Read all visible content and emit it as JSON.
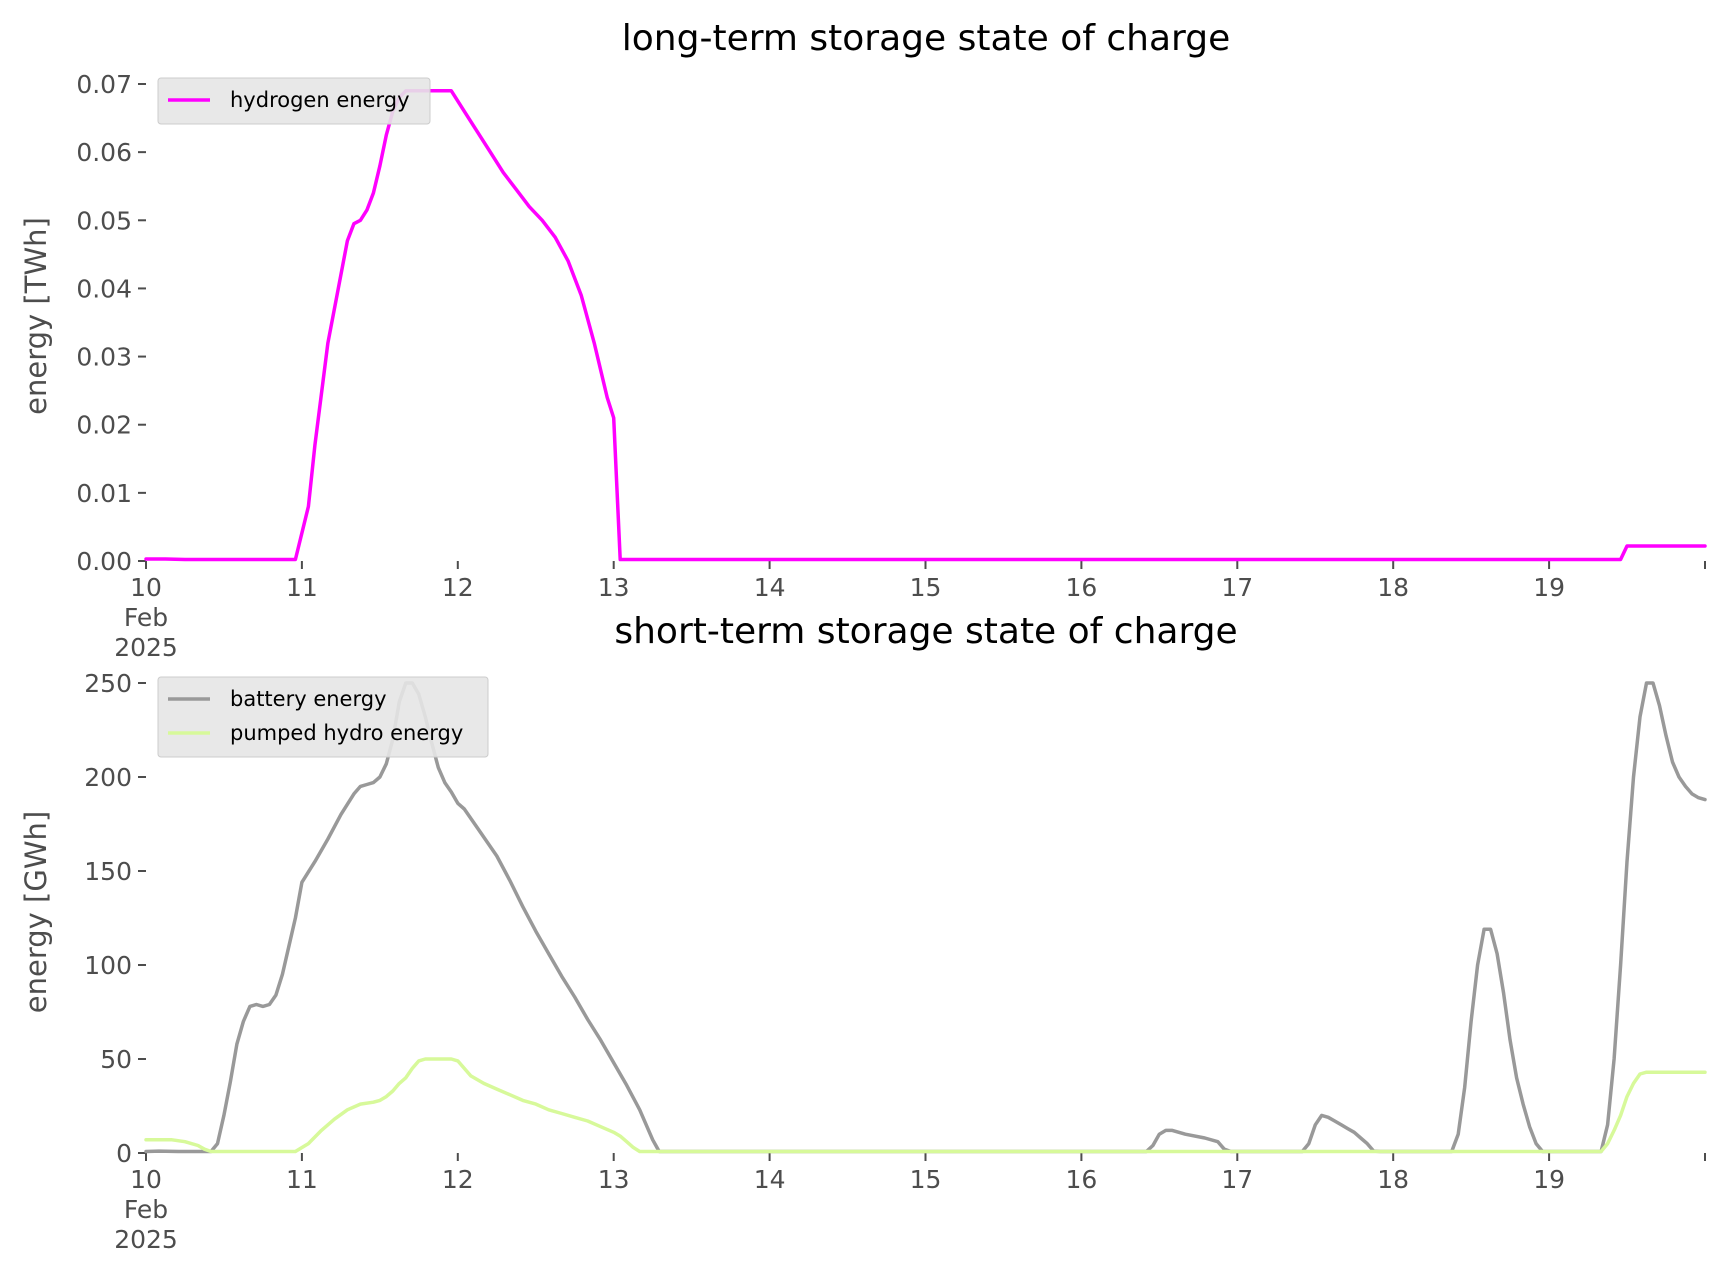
{
  "chart_data": [
    {
      "type": "line",
      "title": "long-term storage state of charge",
      "ylabel": "energy [TWh]",
      "xlabel": "",
      "xlim": [
        "2025-02-10 00:00",
        "2025-02-20 00:00"
      ],
      "ylim": [
        0,
        0.07
      ],
      "x_ticks": [
        "10",
        "11",
        "12",
        "13",
        "14",
        "15",
        "16",
        "17",
        "18",
        "19"
      ],
      "x_tick_sub": [
        "Feb",
        "2025"
      ],
      "y_ticks": [
        "0.00",
        "0.01",
        "0.02",
        "0.03",
        "0.04",
        "0.05",
        "0.06",
        "0.07"
      ],
      "grid": false,
      "legend": "top-left",
      "series": [
        {
          "name": "hydrogen energy",
          "color": "#ff00ff",
          "points": [
            [
              "2025-02-10 00:00",
              0.0003
            ],
            [
              "2025-02-10 03:00",
              0.0003
            ],
            [
              "2025-02-10 06:00",
              0.0002
            ],
            [
              "2025-02-10 09:00",
              0.0001
            ],
            [
              "2025-02-10 12:00",
              0.0001
            ],
            [
              "2025-02-10 23:00",
              0.0001
            ],
            [
              "2025-02-11 01:00",
              0.008
            ],
            [
              "2025-02-11 02:00",
              0.017
            ],
            [
              "2025-02-11 04:00",
              0.032
            ],
            [
              "2025-02-11 06:00",
              0.042
            ],
            [
              "2025-02-11 07:00",
              0.047
            ],
            [
              "2025-02-11 08:00",
              0.0495
            ],
            [
              "2025-02-11 09:00",
              0.05
            ],
            [
              "2025-02-11 10:00",
              0.0515
            ],
            [
              "2025-02-11 11:00",
              0.054
            ],
            [
              "2025-02-11 12:00",
              0.058
            ],
            [
              "2025-02-11 13:00",
              0.0625
            ],
            [
              "2025-02-11 14:00",
              0.066
            ],
            [
              "2025-02-11 15:00",
              0.068
            ],
            [
              "2025-02-11 16:00",
              0.069
            ],
            [
              "2025-02-11 23:00",
              0.069
            ],
            [
              "2025-02-12 01:00",
              0.066
            ],
            [
              "2025-02-12 03:00",
              0.063
            ],
            [
              "2025-02-12 05:00",
              0.06
            ],
            [
              "2025-02-12 07:00",
              0.057
            ],
            [
              "2025-02-12 09:00",
              0.0545
            ],
            [
              "2025-02-12 11:00",
              0.052
            ],
            [
              "2025-02-12 13:00",
              0.05
            ],
            [
              "2025-02-12 15:00",
              0.0475
            ],
            [
              "2025-02-12 17:00",
              0.044
            ],
            [
              "2025-02-12 19:00",
              0.039
            ],
            [
              "2025-02-12 21:00",
              0.032
            ],
            [
              "2025-02-12 23:00",
              0.024
            ],
            [
              "2025-02-13 00:00",
              0.021
            ],
            [
              "2025-02-13 01:00",
              0.0
            ],
            [
              "2025-02-19 11:00",
              0.0
            ],
            [
              "2025-02-19 12:00",
              0.0022
            ],
            [
              "2025-02-20 00:00",
              0.0022
            ]
          ]
        }
      ]
    },
    {
      "type": "line",
      "title": "short-term storage state of charge",
      "ylabel": "energy [GWh]",
      "xlabel": "",
      "xlim": [
        "2025-02-10 00:00",
        "2025-02-20 00:00"
      ],
      "ylim": [
        0,
        250
      ],
      "x_ticks": [
        "10",
        "11",
        "12",
        "13",
        "14",
        "15",
        "16",
        "17",
        "18",
        "19"
      ],
      "x_tick_sub": [
        "Feb",
        "2025"
      ],
      "y_ticks": [
        "0",
        "50",
        "100",
        "150",
        "200",
        "250"
      ],
      "grid": false,
      "legend": "top-left",
      "series": [
        {
          "name": "battery energy",
          "color": "#999999",
          "points": [
            [
              "2025-02-10 00:00",
              0
            ],
            [
              "2025-02-10 02:00",
              1
            ],
            [
              "2025-02-10 05:00",
              0.5
            ],
            [
              "2025-02-10 07:00",
              0
            ],
            [
              "2025-02-10 10:00",
              0
            ],
            [
              "2025-02-10 11:00",
              5
            ],
            [
              "2025-02-10 12:00",
              20
            ],
            [
              "2025-02-10 13:00",
              38
            ],
            [
              "2025-02-10 14:00",
              58
            ],
            [
              "2025-02-10 15:00",
              70
            ],
            [
              "2025-02-10 16:00",
              78
            ],
            [
              "2025-02-10 17:00",
              79
            ],
            [
              "2025-02-10 18:00",
              78
            ],
            [
              "2025-02-10 19:00",
              79
            ],
            [
              "2025-02-10 20:00",
              84
            ],
            [
              "2025-02-10 21:00",
              95
            ],
            [
              "2025-02-10 22:00",
              110
            ],
            [
              "2025-02-10 23:00",
              125
            ],
            [
              "2025-02-11 00:00",
              144
            ],
            [
              "2025-02-11 02:00",
              155
            ],
            [
              "2025-02-11 04:00",
              167
            ],
            [
              "2025-02-11 06:00",
              180
            ],
            [
              "2025-02-11 08:00",
              191
            ],
            [
              "2025-02-11 09:00",
              195
            ],
            [
              "2025-02-11 10:00",
              196
            ],
            [
              "2025-02-11 11:00",
              197
            ],
            [
              "2025-02-11 12:00",
              200
            ],
            [
              "2025-02-11 13:00",
              207
            ],
            [
              "2025-02-11 14:00",
              220
            ],
            [
              "2025-02-11 15:00",
              240
            ],
            [
              "2025-02-11 16:00",
              250
            ],
            [
              "2025-02-11 17:00",
              250
            ],
            [
              "2025-02-11 18:00",
              244
            ],
            [
              "2025-02-11 19:00",
              232
            ],
            [
              "2025-02-11 20:00",
              218
            ],
            [
              "2025-02-11 21:00",
              205
            ],
            [
              "2025-02-11 22:00",
              197
            ],
            [
              "2025-02-11 23:00",
              192
            ],
            [
              "2025-02-12 00:00",
              186
            ],
            [
              "2025-02-12 01:00",
              183
            ],
            [
              "2025-02-12 03:00",
              173
            ],
            [
              "2025-02-12 06:00",
              158
            ],
            [
              "2025-02-12 08:00",
              145
            ],
            [
              "2025-02-12 10:00",
              131
            ],
            [
              "2025-02-12 12:00",
              118
            ],
            [
              "2025-02-12 14:00",
              106
            ],
            [
              "2025-02-12 16:00",
              94
            ],
            [
              "2025-02-12 18:00",
              83
            ],
            [
              "2025-02-12 20:00",
              71
            ],
            [
              "2025-02-12 22:00",
              60
            ],
            [
              "2025-02-13 00:00",
              48
            ],
            [
              "2025-02-13 02:00",
              36
            ],
            [
              "2025-02-13 04:00",
              23
            ],
            [
              "2025-02-13 05:00",
              15
            ],
            [
              "2025-02-13 06:00",
              7
            ],
            [
              "2025-02-13 07:00",
              0
            ],
            [
              "2025-02-16 10:00",
              0
            ],
            [
              "2025-02-16 11:00",
              4
            ],
            [
              "2025-02-16 12:00",
              10
            ],
            [
              "2025-02-16 13:00",
              12
            ],
            [
              "2025-02-16 14:00",
              12
            ],
            [
              "2025-02-16 16:00",
              10
            ],
            [
              "2025-02-16 19:00",
              8
            ],
            [
              "2025-02-16 21:00",
              6
            ],
            [
              "2025-02-16 22:00",
              2
            ],
            [
              "2025-02-16 23:00",
              0
            ],
            [
              "2025-02-17 10:00",
              0
            ],
            [
              "2025-02-17 11:00",
              5
            ],
            [
              "2025-02-17 12:00",
              15
            ],
            [
              "2025-02-17 13:00",
              20
            ],
            [
              "2025-02-17 14:00",
              19
            ],
            [
              "2025-02-17 15:00",
              17
            ],
            [
              "2025-02-17 16:00",
              15
            ],
            [
              "2025-02-17 17:00",
              13
            ],
            [
              "2025-02-17 18:00",
              11
            ],
            [
              "2025-02-17 19:00",
              8
            ],
            [
              "2025-02-17 20:00",
              5
            ],
            [
              "2025-02-17 21:00",
              1
            ],
            [
              "2025-02-17 22:00",
              0
            ],
            [
              "2025-02-18 09:00",
              0
            ],
            [
              "2025-02-18 10:00",
              10
            ],
            [
              "2025-02-18 11:00",
              35
            ],
            [
              "2025-02-18 12:00",
              70
            ],
            [
              "2025-02-18 13:00",
              100
            ],
            [
              "2025-02-18 14:00",
              119
            ],
            [
              "2025-02-18 15:00",
              119
            ],
            [
              "2025-02-18 16:00",
              106
            ],
            [
              "2025-02-18 17:00",
              85
            ],
            [
              "2025-02-18 18:00",
              60
            ],
            [
              "2025-02-18 19:00",
              40
            ],
            [
              "2025-02-18 20:00",
              26
            ],
            [
              "2025-02-18 21:00",
              14
            ],
            [
              "2025-02-18 22:00",
              5
            ],
            [
              "2025-02-18 23:00",
              0
            ],
            [
              "2025-02-19 08:00",
              0
            ],
            [
              "2025-02-19 09:00",
              15
            ],
            [
              "2025-02-19 10:00",
              50
            ],
            [
              "2025-02-19 11:00",
              100
            ],
            [
              "2025-02-19 12:00",
              155
            ],
            [
              "2025-02-19 13:00",
              200
            ],
            [
              "2025-02-19 14:00",
              232
            ],
            [
              "2025-02-19 15:00",
              250
            ],
            [
              "2025-02-19 16:00",
              250
            ],
            [
              "2025-02-19 17:00",
              238
            ],
            [
              "2025-02-19 18:00",
              222
            ],
            [
              "2025-02-19 19:00",
              208
            ],
            [
              "2025-02-19 20:00",
              200
            ],
            [
              "2025-02-19 21:00",
              195
            ],
            [
              "2025-02-19 22:00",
              191
            ],
            [
              "2025-02-19 23:00",
              189
            ],
            [
              "2025-02-20 00:00",
              188
            ]
          ]
        },
        {
          "name": "pumped hydro energy",
          "color": "#d7f99a",
          "points": [
            [
              "2025-02-10 00:00",
              7
            ],
            [
              "2025-02-10 04:00",
              7
            ],
            [
              "2025-02-10 06:00",
              6
            ],
            [
              "2025-02-10 08:00",
              4
            ],
            [
              "2025-02-10 09:00",
              2
            ],
            [
              "2025-02-10 10:00",
              0
            ],
            [
              "2025-02-10 23:00",
              0
            ],
            [
              "2025-02-11 01:00",
              5
            ],
            [
              "2025-02-11 03:00",
              12
            ],
            [
              "2025-02-11 05:00",
              18
            ],
            [
              "2025-02-11 07:00",
              23
            ],
            [
              "2025-02-11 09:00",
              26
            ],
            [
              "2025-02-11 11:00",
              27
            ],
            [
              "2025-02-11 12:00",
              28
            ],
            [
              "2025-02-11 13:00",
              30
            ],
            [
              "2025-02-11 14:00",
              33
            ],
            [
              "2025-02-11 15:00",
              37
            ],
            [
              "2025-02-11 16:00",
              40
            ],
            [
              "2025-02-11 17:00",
              45
            ],
            [
              "2025-02-11 18:00",
              49
            ],
            [
              "2025-02-11 19:00",
              50
            ],
            [
              "2025-02-11 23:00",
              50
            ],
            [
              "2025-02-12 00:00",
              49
            ],
            [
              "2025-02-12 01:00",
              45
            ],
            [
              "2025-02-12 02:00",
              41
            ],
            [
              "2025-02-12 04:00",
              37
            ],
            [
              "2025-02-12 06:00",
              34
            ],
            [
              "2025-02-12 08:00",
              31
            ],
            [
              "2025-02-12 10:00",
              28
            ],
            [
              "2025-02-12 12:00",
              26
            ],
            [
              "2025-02-12 14:00",
              23
            ],
            [
              "2025-02-12 16:00",
              21
            ],
            [
              "2025-02-12 18:00",
              19
            ],
            [
              "2025-02-12 20:00",
              17
            ],
            [
              "2025-02-12 22:00",
              14
            ],
            [
              "2025-02-13 00:00",
              11
            ],
            [
              "2025-02-13 01:00",
              9
            ],
            [
              "2025-02-13 02:00",
              6
            ],
            [
              "2025-02-13 03:00",
              3
            ],
            [
              "2025-02-13 04:00",
              0
            ],
            [
              "2025-02-19 08:00",
              0
            ],
            [
              "2025-02-19 09:00",
              5
            ],
            [
              "2025-02-19 10:00",
              12
            ],
            [
              "2025-02-19 11:00",
              20
            ],
            [
              "2025-02-19 12:00",
              30
            ],
            [
              "2025-02-19 13:00",
              37
            ],
            [
              "2025-02-19 14:00",
              42
            ],
            [
              "2025-02-19 15:00",
              43
            ],
            [
              "2025-02-20 00:00",
              43
            ]
          ]
        }
      ]
    }
  ]
}
